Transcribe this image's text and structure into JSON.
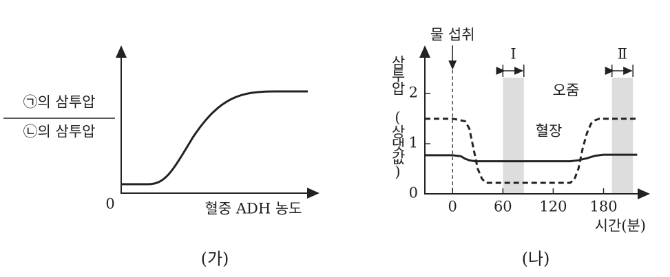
{
  "chart_data": [
    {
      "type": "schematic",
      "y_label_numerator": "㉠의 삼투압",
      "y_label_denominator": "㉡의 삼투압",
      "x_label": "혈중 ADH 농도",
      "origin_label": "0",
      "caption": "(가)"
    },
    {
      "type": "line",
      "y_label": "삼투압 (상댓값)",
      "x_label": "시간(분)",
      "caption": "(나)",
      "xlim": [
        -33,
        228
      ],
      "ylim": [
        0,
        2.84
      ],
      "xticks": [
        0,
        60,
        120,
        180
      ],
      "yticks": [
        0,
        1,
        2
      ],
      "annotation": {
        "label": "물 섭취",
        "x": 0
      },
      "bands": [
        {
          "label": "Ⅰ",
          "x": [
            60,
            85
          ]
        },
        {
          "label": "Ⅱ",
          "x": [
            190,
            215
          ]
        }
      ],
      "series": [
        {
          "name": "오줌",
          "color": "#222",
          "linestyle": "dashed",
          "x": [
            -33,
            0,
            15,
            20,
            25,
            30,
            35,
            40,
            140,
            145,
            150,
            155,
            160,
            165,
            170,
            175,
            220
          ],
          "values": [
            1.5,
            1.5,
            1.45,
            1.3,
            0.9,
            0.5,
            0.3,
            0.22,
            0.22,
            0.28,
            0.5,
            0.9,
            1.2,
            1.4,
            1.47,
            1.5,
            1.5
          ]
        },
        {
          "name": "혈장",
          "color": "#222",
          "linestyle": "solid",
          "x": [
            -33,
            0,
            10,
            15,
            20,
            27,
            140,
            150,
            160,
            170,
            180,
            220
          ],
          "values": [
            0.77,
            0.77,
            0.75,
            0.7,
            0.67,
            0.65,
            0.65,
            0.67,
            0.71,
            0.76,
            0.78,
            0.78
          ]
        }
      ]
    }
  ]
}
